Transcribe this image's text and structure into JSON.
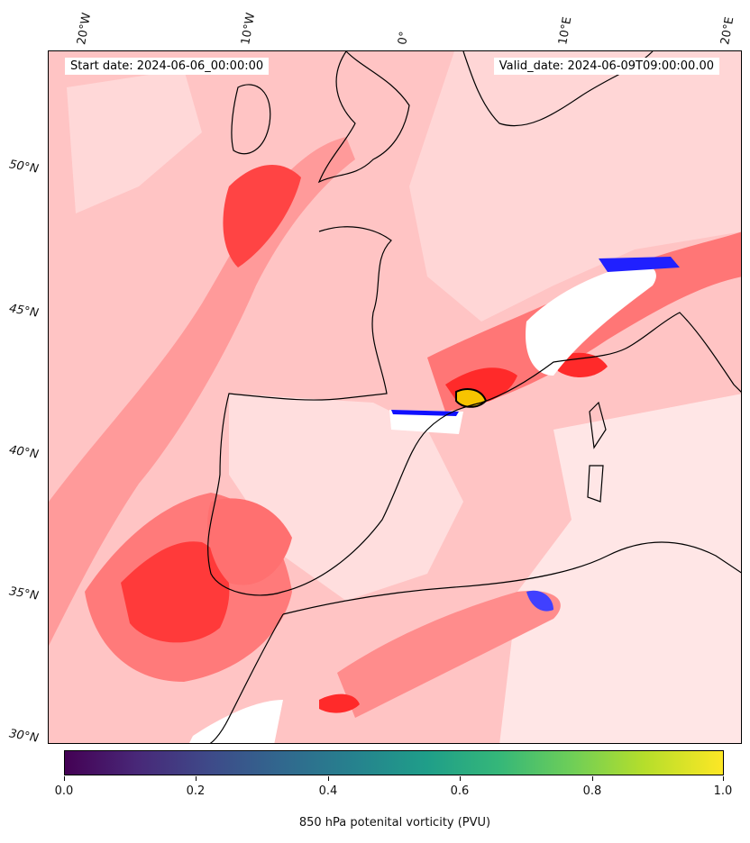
{
  "map": {
    "start_label": "Start date: 2024-06-06_00:00:00",
    "valid_label": "Valid_date: 2024-06-09T09:00:00.00",
    "lon_labels": [
      "20°W",
      "10°W",
      "0°",
      "10°E",
      "20°E"
    ],
    "lat_labels": [
      "50°N",
      "45°N",
      "40°N",
      "35°N",
      "30°N"
    ],
    "colorbar": {
      "title": "850 hPa potenital vorticity (PVU)",
      "ticks": [
        "0.0",
        "0.2",
        "0.4",
        "0.6",
        "0.8",
        "1.0"
      ],
      "range": [
        0.0,
        1.0
      ],
      "colormap": "viridis"
    },
    "colors": {
      "positive_strong": "#ff2020",
      "positive_mid": "#ff8080",
      "positive_weak": "#ffd0d0",
      "negative": "#1010ff",
      "coastline": "#000000"
    }
  }
}
